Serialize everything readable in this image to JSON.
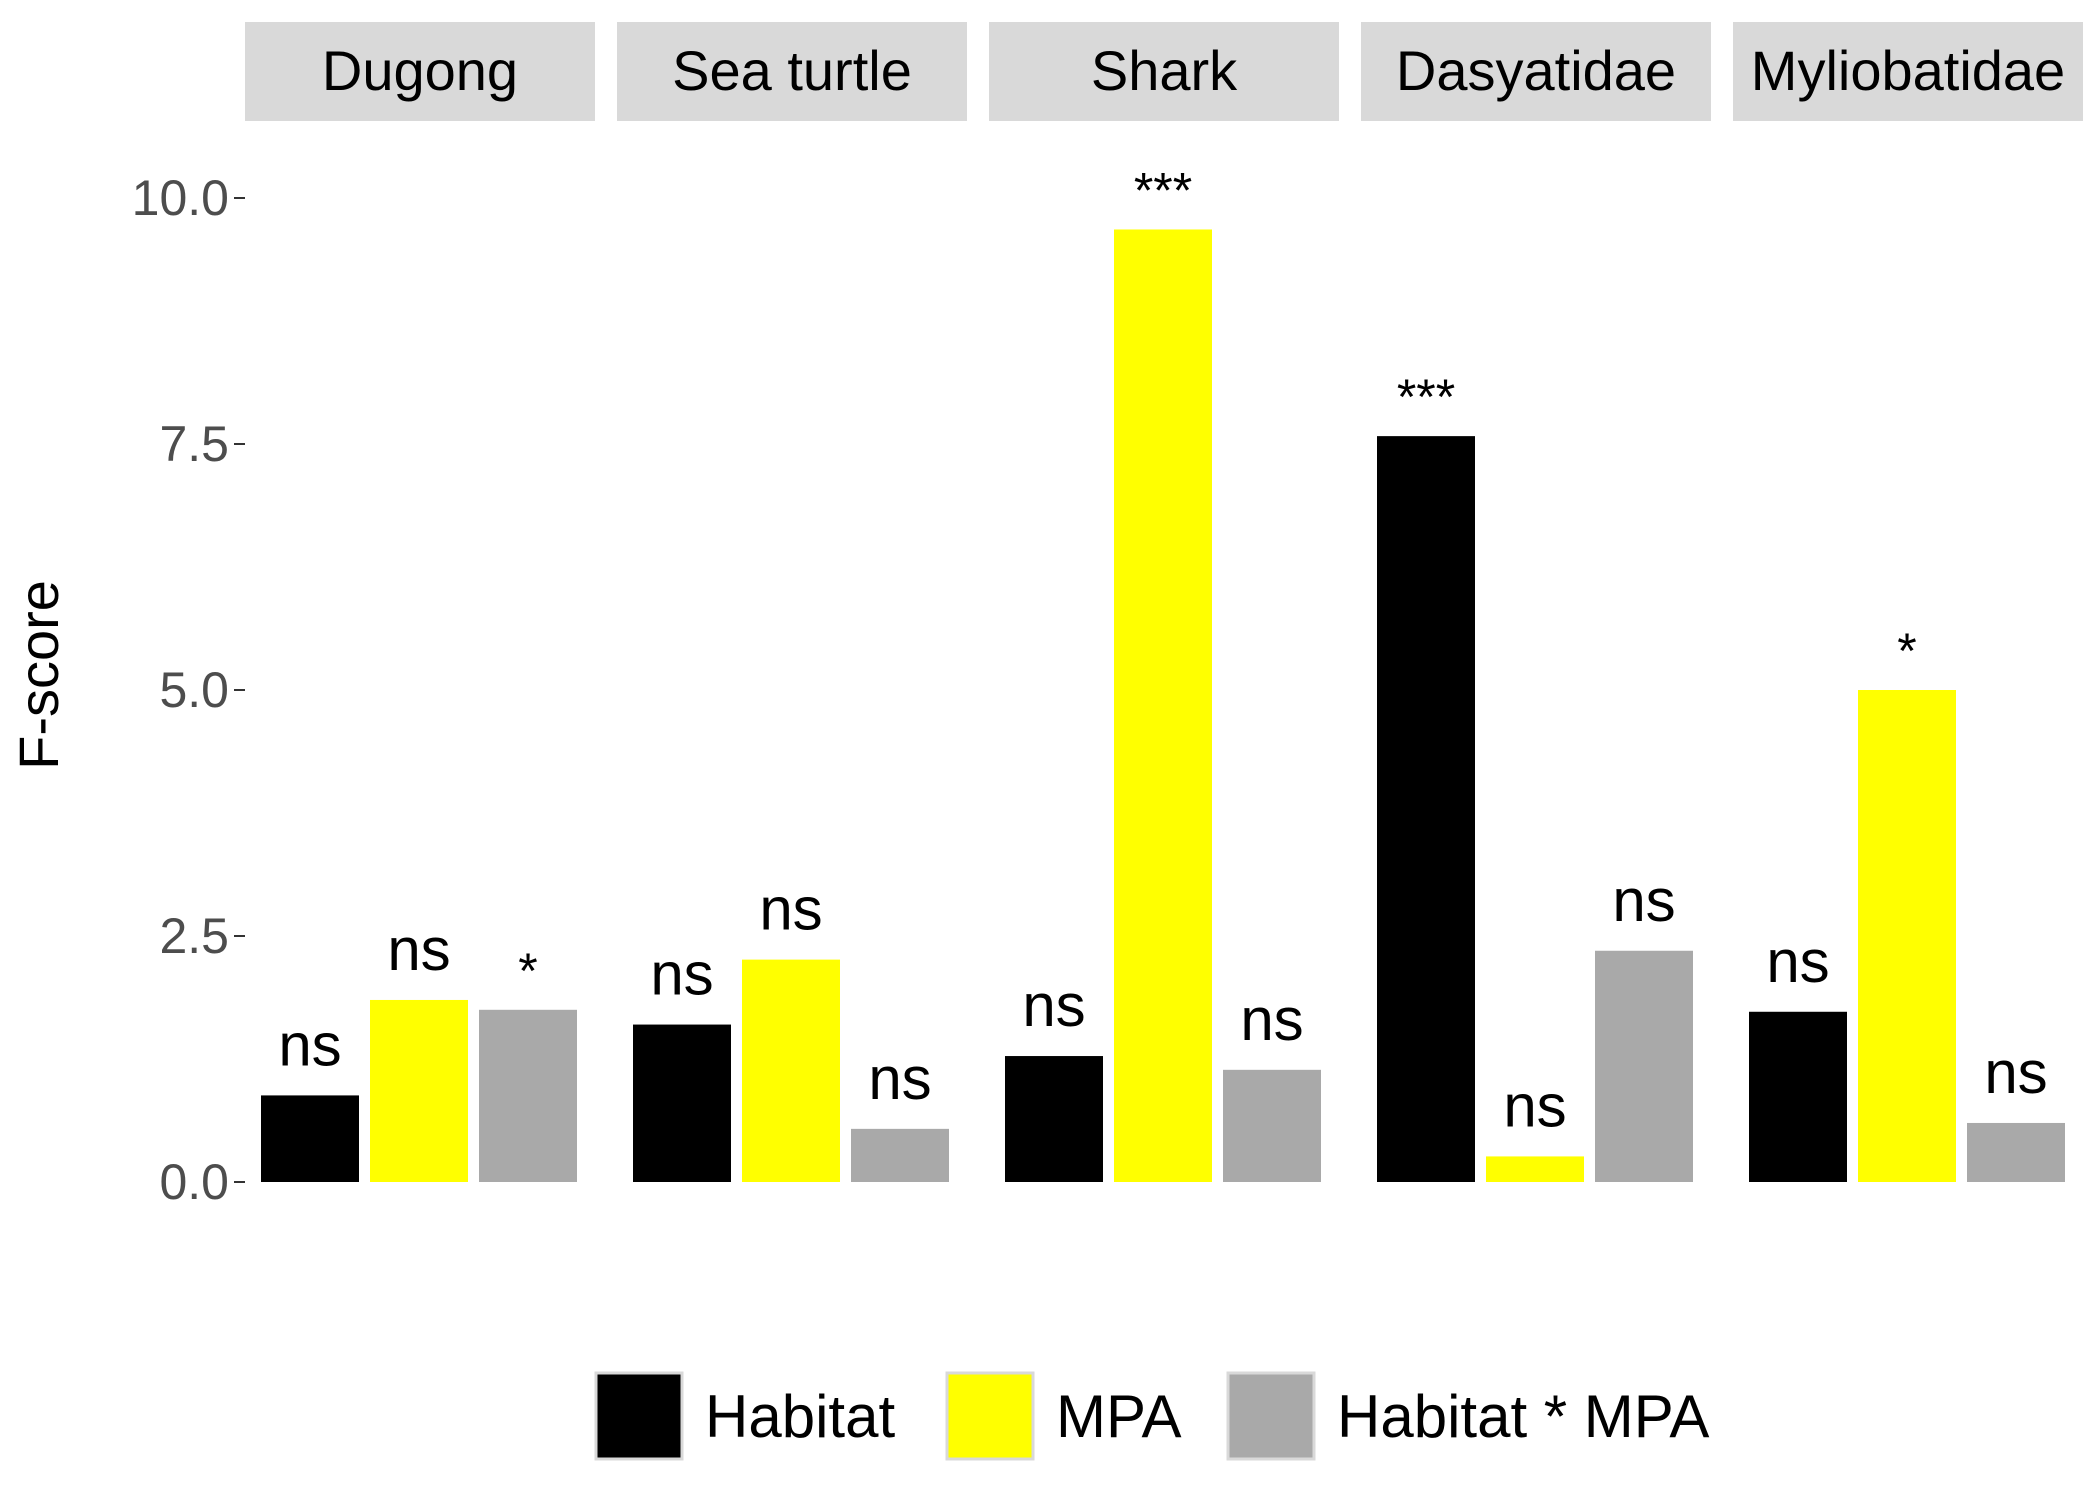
{
  "chart_data": {
    "type": "bar",
    "ylabel": "F-score",
    "xlabel": "",
    "ylim": [
      0,
      10.5
    ],
    "yticks": [
      "0.0",
      "2.5",
      "5.0",
      "7.5",
      "10.0"
    ],
    "ytick_values": [
      0,
      2.5,
      5.0,
      7.5,
      10.0
    ],
    "facets": [
      "Dugong",
      "Sea turtle",
      "Shark",
      "Dasyatidae",
      "Myliobatidae"
    ],
    "series": [
      {
        "name": "Habitat",
        "color": "#000000",
        "values": [
          0.88,
          1.6,
          1.28,
          7.58,
          1.73
        ],
        "labels": [
          "ns",
          "ns",
          "ns",
          "***",
          "ns"
        ]
      },
      {
        "name": "MPA",
        "color": "#FFFF00",
        "values": [
          1.85,
          2.26,
          9.68,
          0.26,
          5.0
        ],
        "labels": [
          "ns",
          "ns",
          "***",
          "ns",
          "*"
        ]
      },
      {
        "name": "Habitat * MPA",
        "color": "#A9A9A9",
        "values": [
          1.75,
          0.54,
          1.14,
          2.35,
          0.6
        ],
        "labels": [
          "*",
          "ns",
          "ns",
          "ns",
          "ns"
        ]
      }
    ],
    "grid": false,
    "legend_position": "bottom"
  },
  "colors": {
    "strip_background": "#D9D9D9",
    "axis_text": "#4D4D4D",
    "text": "#000000",
    "legend_key_border": "#D9D9D9"
  }
}
